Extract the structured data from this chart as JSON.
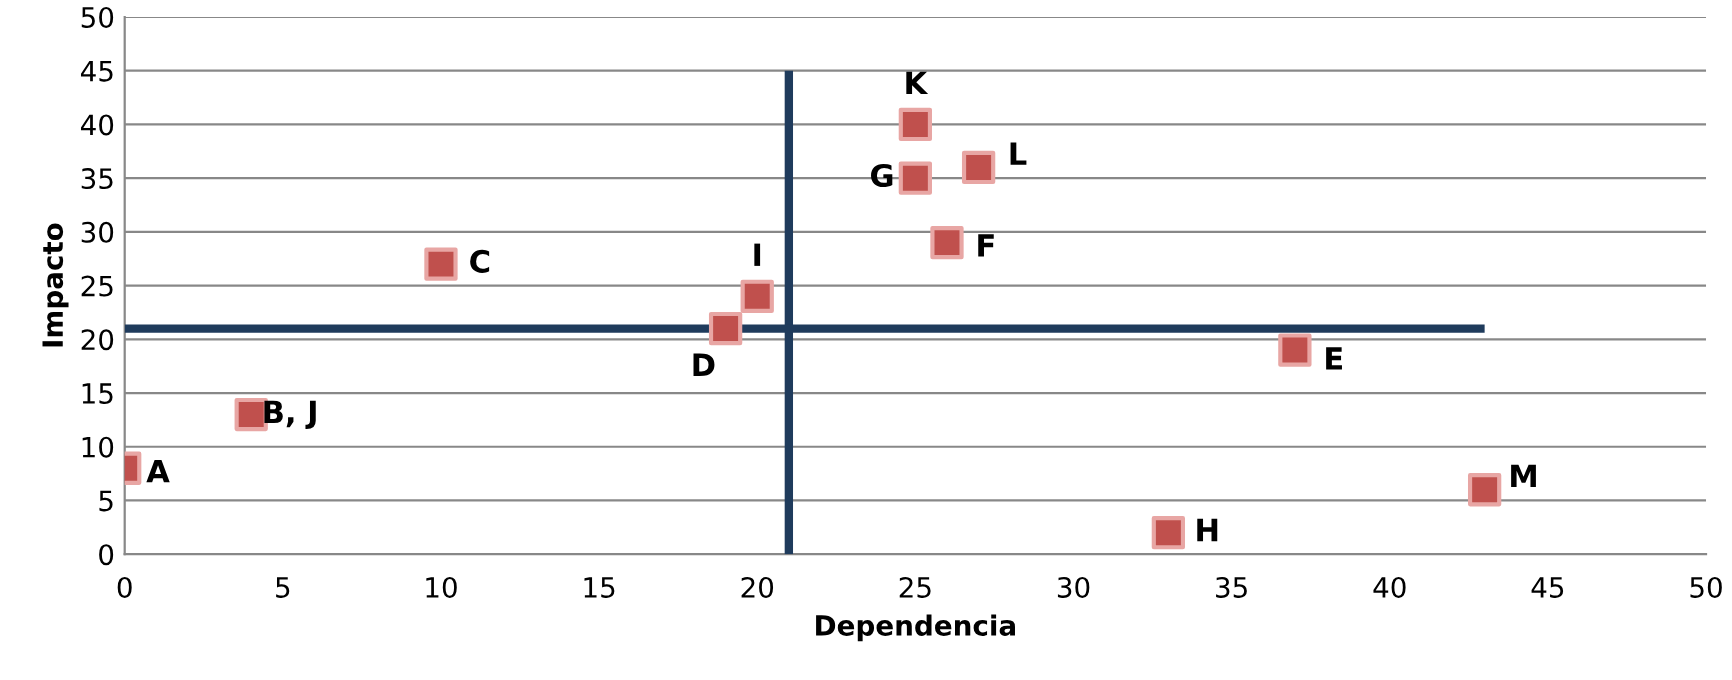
{
  "chart_data": {
    "type": "scatter",
    "xlabel": "Dependencia",
    "ylabel": "Impacto",
    "xlim": [
      0,
      50
    ],
    "ylim": [
      0,
      50
    ],
    "xticks": [
      0,
      5,
      10,
      15,
      20,
      25,
      30,
      35,
      40,
      45,
      50
    ],
    "yticks": [
      0,
      5,
      10,
      15,
      20,
      25,
      30,
      35,
      40,
      45,
      50
    ],
    "grid": "y",
    "legend": false,
    "series": [
      {
        "marker": "square",
        "color": "#c0504d",
        "x": [
          0,
          4,
          10,
          19,
          20,
          25,
          25,
          27,
          26,
          37,
          33,
          43
        ],
        "values": [
          8,
          13,
          27,
          21,
          24,
          40,
          35,
          36,
          29,
          19,
          2,
          6
        ]
      },
      {
        "type": "line",
        "marker": "none",
        "color": "#1f3b5c",
        "x": [
          21,
          21
        ],
        "values": [
          0,
          45
        ]
      },
      {
        "type": "line",
        "marker": "none",
        "color": "#1f3b5c",
        "x": [
          0,
          43
        ],
        "values": [
          21,
          21
        ]
      }
    ],
    "annotations": [
      {
        "text": "A",
        "x": 0,
        "y": 8
      },
      {
        "text": "B, J",
        "x": 4,
        "y": 13
      },
      {
        "text": "C",
        "x": 10,
        "y": 27
      },
      {
        "text": "D",
        "x": 19,
        "y": 21
      },
      {
        "text": "I",
        "x": 20,
        "y": 24
      },
      {
        "text": "K",
        "x": 25,
        "y": 40
      },
      {
        "text": "G",
        "x": 25,
        "y": 35
      },
      {
        "text": "L",
        "x": 27,
        "y": 36
      },
      {
        "text": "F",
        "x": 26,
        "y": 29
      },
      {
        "text": "E",
        "x": 37,
        "y": 19
      },
      {
        "text": "H",
        "x": 33,
        "y": 2
      },
      {
        "text": "M",
        "x": 43,
        "y": 6
      }
    ]
  }
}
